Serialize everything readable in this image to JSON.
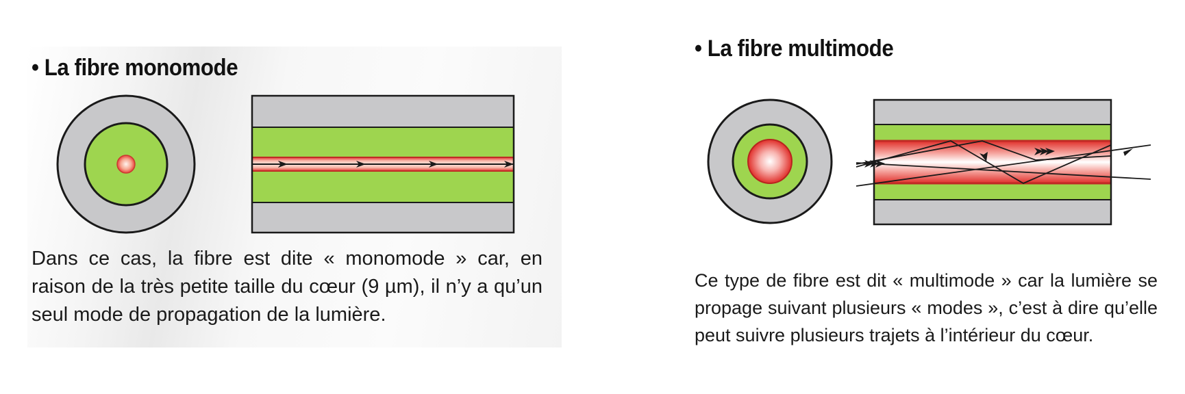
{
  "monomode": {
    "title": "• La fibre monomode",
    "description": "Dans ce cas, la fibre est dite « monomode » car, en raison de la très petite taille du cœur (9 µm), il n’y a qu’un seul mode de propagation de la lumière."
  },
  "multimode": {
    "title": "• La fibre multimode",
    "description": "Ce type de fibre est dit « multimode » car la lumière se propage suivant plusieurs « modes », c’est à dire qu’elle peut suivre plusieurs trajets à l’intérieur du cœur."
  },
  "colors": {
    "gaine": "#c8c8ca",
    "cladding": "#9ed54f",
    "core": "#e8403a",
    "outline": "#1a1a1a"
  }
}
